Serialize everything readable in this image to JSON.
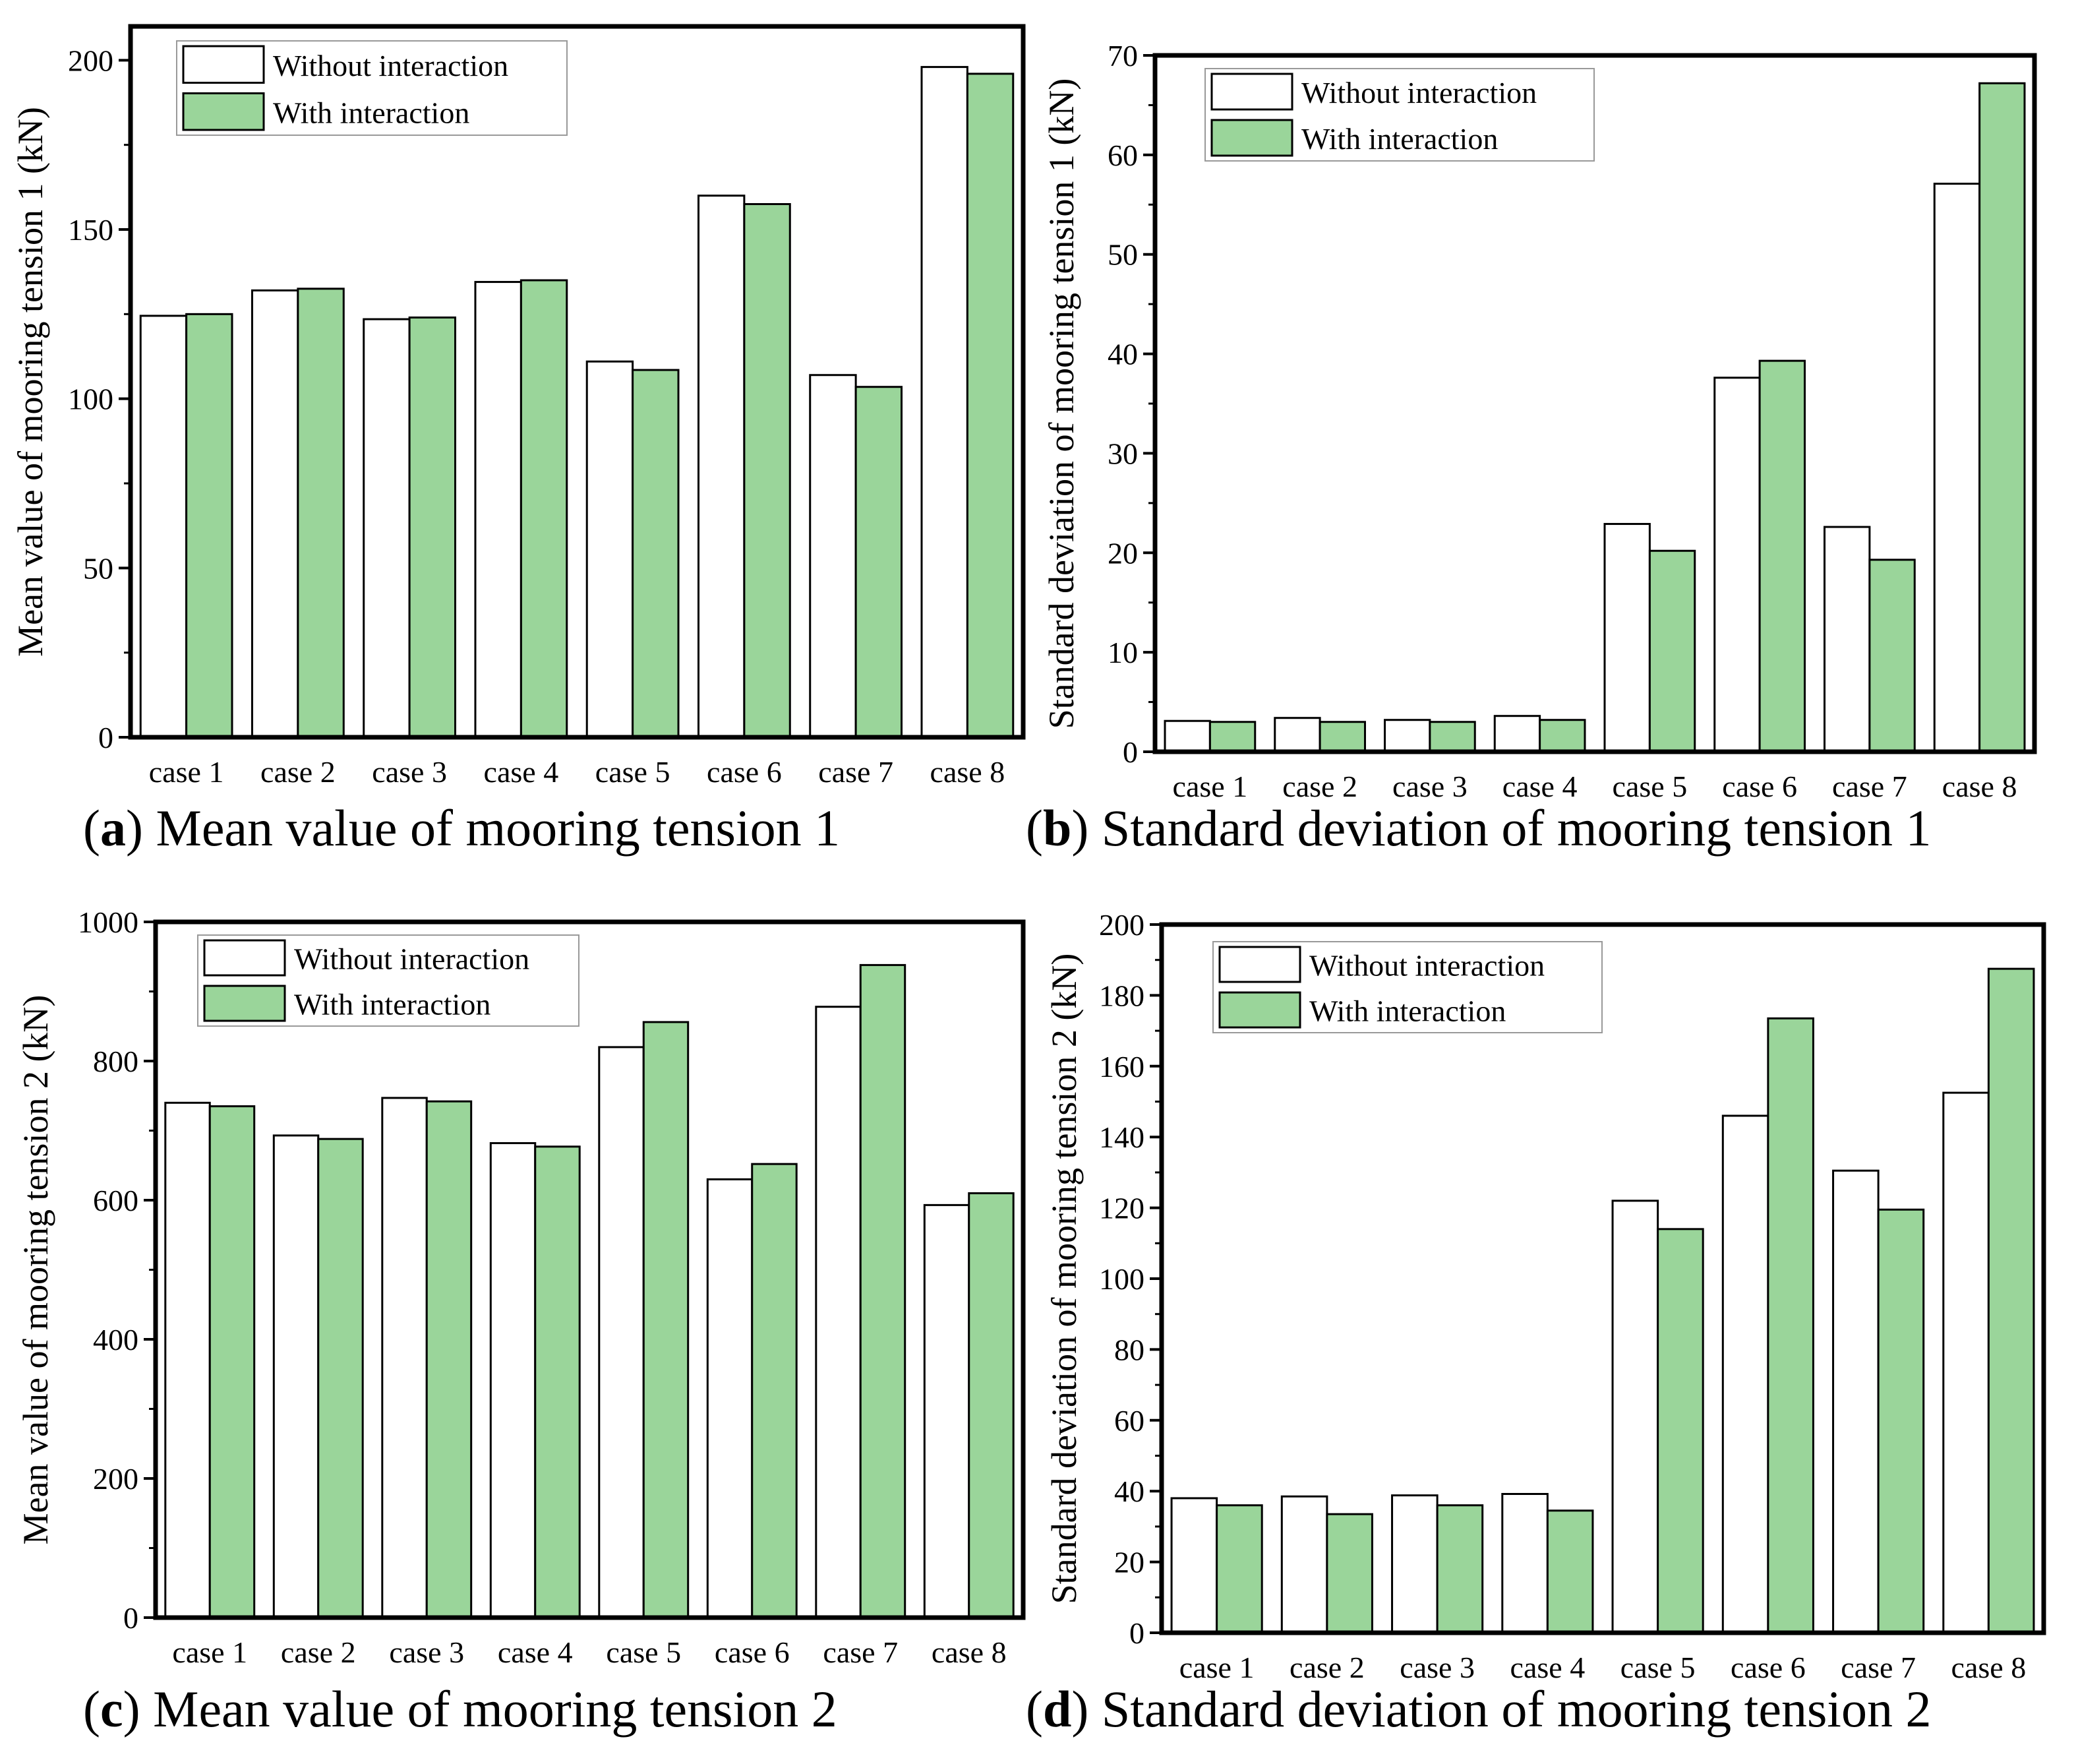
{
  "series_colors": {
    "without": "#ffffff",
    "with": "#9ad59a"
  },
  "legend": {
    "without": "Without interaction",
    "with": "With interaction"
  },
  "chart_data": [
    {
      "type": "bar",
      "panel": "a",
      "caption_letter": "a",
      "caption_text": "Mean value of mooring tension 1",
      "categories": [
        "case 1",
        "case 2",
        "case 3",
        "case 4",
        "case 5",
        "case 6",
        "case 7",
        "case 8"
      ],
      "series": [
        {
          "name": "Without interaction",
          "values": [
            124.5,
            132,
            123.5,
            134.5,
            111,
            160,
            107,
            198
          ]
        },
        {
          "name": "With interaction",
          "values": [
            125,
            132.5,
            124,
            135,
            108.5,
            157.5,
            103.5,
            196
          ]
        }
      ],
      "ylabel": "Mean value of mooring tension 1 (kN)",
      "xlabel": "",
      "ylim": [
        0,
        210
      ],
      "yticks": [
        0,
        50,
        100,
        150,
        200
      ],
      "ytick_labels": [
        "0",
        "50",
        "100",
        "150",
        "200"
      ],
      "legend_position": "top-left"
    },
    {
      "type": "bar",
      "panel": "b",
      "caption_letter": "b",
      "caption_text": "Standard deviation of mooring tension 1",
      "categories": [
        "case 1",
        "case 2",
        "case 3",
        "case 4",
        "case 5",
        "case 6",
        "case 7",
        "case 8"
      ],
      "series": [
        {
          "name": "Without interaction",
          "values": [
            3.1,
            3.4,
            3.2,
            3.6,
            22.9,
            37.6,
            22.6,
            57.1
          ]
        },
        {
          "name": "With interaction",
          "values": [
            3.0,
            3.0,
            3.0,
            3.2,
            20.2,
            39.3,
            19.3,
            67.2
          ]
        }
      ],
      "ylabel": "Standard deviation of mooring tension 1 (kN)",
      "xlabel": "",
      "ylim": [
        0,
        70
      ],
      "yticks": [
        0,
        10,
        20,
        30,
        40,
        50,
        60,
        70
      ],
      "ytick_labels": [
        "0",
        "10",
        "20",
        "30",
        "40",
        "50",
        "60",
        "70"
      ],
      "legend_position": "top-left"
    },
    {
      "type": "bar",
      "panel": "c",
      "caption_letter": "c",
      "caption_text": "Mean value of mooring tension 2",
      "categories": [
        "case 1",
        "case 2",
        "case 3",
        "case 4",
        "case 5",
        "case 6",
        "case 7",
        "case 8"
      ],
      "series": [
        {
          "name": "Without interaction",
          "values": [
            740,
            693,
            747,
            682,
            820,
            630,
            878,
            593
          ]
        },
        {
          "name": "With interaction",
          "values": [
            735,
            688,
            742,
            677,
            856,
            652,
            938,
            610
          ]
        }
      ],
      "ylabel": "Mean value of mooring tension 2 (kN)",
      "xlabel": "",
      "ylim": [
        0,
        1000
      ],
      "yticks": [
        0,
        200,
        400,
        600,
        800,
        1000
      ],
      "ytick_labels": [
        "0",
        "200",
        "400",
        "600",
        "800",
        "1000"
      ],
      "legend_position": "top-left"
    },
    {
      "type": "bar",
      "panel": "d",
      "caption_letter": "d",
      "caption_text": "Standard deviation of mooring tension 2",
      "categories": [
        "case 1",
        "case 2",
        "case 3",
        "case 4",
        "case 5",
        "case 6",
        "case 7",
        "case 8"
      ],
      "series": [
        {
          "name": "Without interaction",
          "values": [
            38,
            38.5,
            38.8,
            39.2,
            122,
            146,
            130.5,
            152.5
          ]
        },
        {
          "name": "With interaction",
          "values": [
            36,
            33.5,
            36,
            34.5,
            114,
            173.5,
            119.5,
            187.5
          ]
        }
      ],
      "ylabel": "Standard deviation of mooring tension 2 (kN)",
      "xlabel": "",
      "ylim": [
        0,
        200
      ],
      "yticks": [
        0,
        20,
        40,
        60,
        80,
        100,
        120,
        140,
        160,
        180,
        200
      ],
      "ytick_labels": [
        "0",
        "20",
        "40",
        "60",
        "80",
        "100",
        "120",
        "140",
        "160",
        "180",
        "200"
      ],
      "legend_position": "top-left"
    }
  ]
}
